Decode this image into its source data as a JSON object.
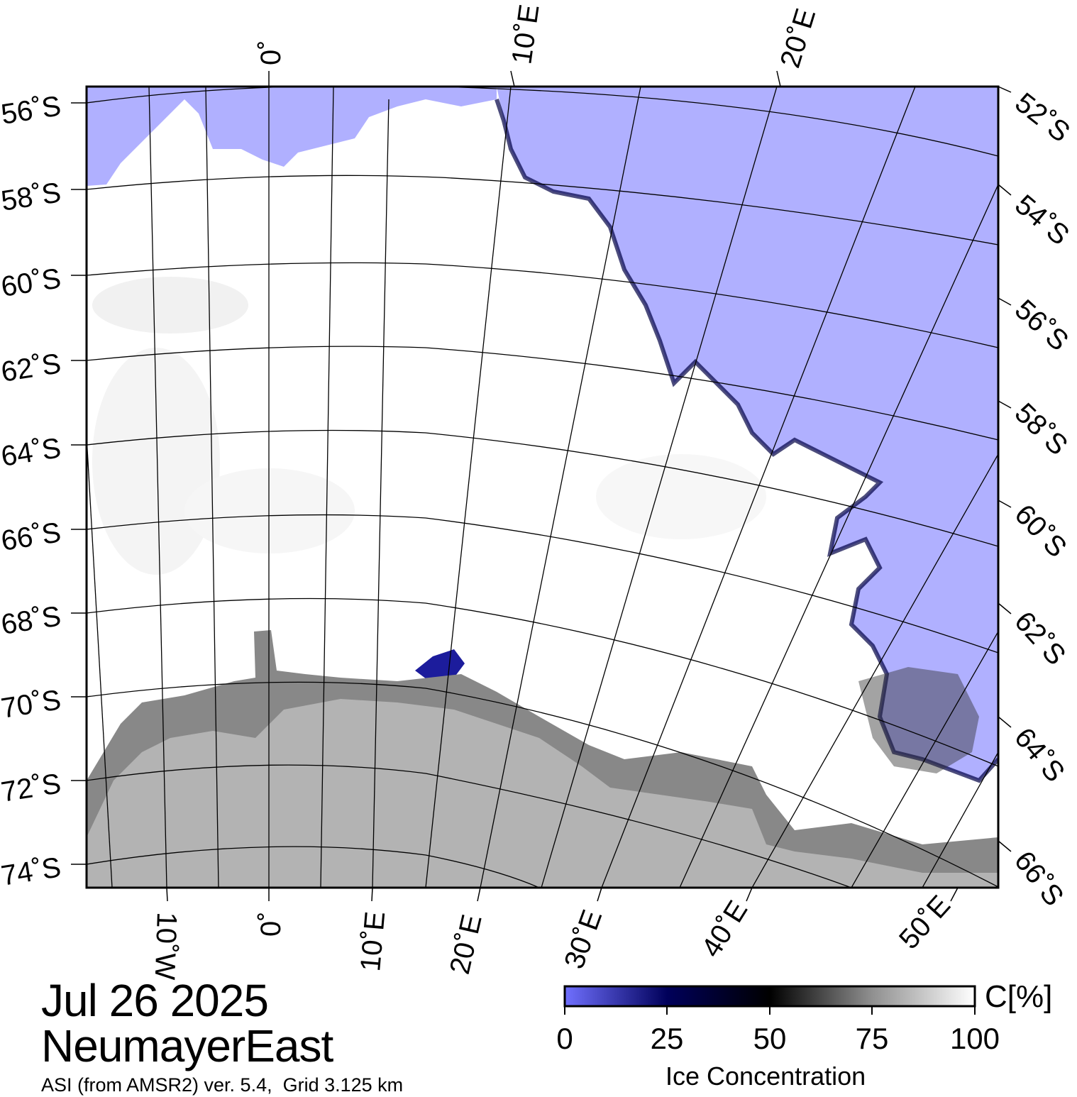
{
  "date": "Jul 26 2025",
  "region": "NeumayerEast",
  "source": "ASI (from AMSR2) ver. 5.4,  Grid 3.125 km",
  "colors": {
    "open_water": "#b0b0ff",
    "land": "#b3b3b3",
    "ice_shelf": "#888888",
    "sea_ice_full": "#ffffff",
    "frame": "#000000"
  },
  "colorbar": {
    "unit": "C[%]",
    "title": "Ice Concentration",
    "ticks": [
      "0",
      "25",
      "50",
      "75",
      "100"
    ],
    "colorscale": [
      {
        "value": 0,
        "color": "#7070ff"
      },
      {
        "value": 25,
        "color": "#00005a"
      },
      {
        "value": 50,
        "color": "#000000"
      },
      {
        "value": 75,
        "color": "#909090"
      },
      {
        "value": 100,
        "color": "#ffffff"
      }
    ]
  },
  "latitude_labels_left": [
    "56˚S",
    "58˚S",
    "60˚S",
    "62˚S",
    "64˚S",
    "66˚S",
    "68˚S",
    "70˚S",
    "72˚S",
    "74˚S"
  ],
  "latitude_labels_right": [
    "52˚S",
    "54˚S",
    "56˚S",
    "58˚S",
    "60˚S",
    "62˚S",
    "64˚S",
    "66˚S"
  ],
  "longitude_labels_top": [
    "0˚",
    "10˚E",
    "20˚E"
  ],
  "longitude_labels_bottom": [
    "10˚W",
    "0˚",
    "10˚E",
    "20˚E",
    "30˚E",
    "40˚E",
    "50˚E"
  ]
}
